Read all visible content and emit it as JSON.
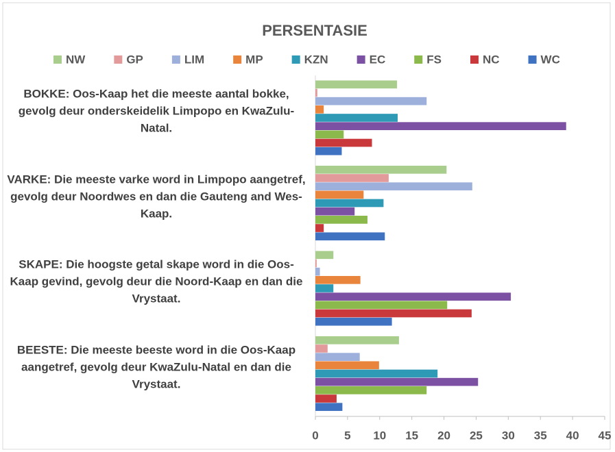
{
  "chart_data": {
    "type": "hbar",
    "title": "PERSENTASIE",
    "categories": [
      "BOKKE: Oos-Kaap het die meeste aantal bokke, gevolg deur onderskeidelik Limpopo en KwaZulu-Natal.",
      "VARKE: Die meeste varke word in Limpopo aangetref, gevolg deur Noordwes en dan die Gauteng and Wes-Kaap.",
      "SKAPE: Die hoogste getal skape word in die Oos-Kaap gevind, gevolg deur die Noord-Kaap en dan die Vrystaat.",
      "BEESTE: Die meeste beeste word in die Oos-Kaap aangetref, gevolg deur KwaZulu-Natal en dan die Vrystaat."
    ],
    "series": [
      {
        "name": "NW",
        "color": "#a9cd8c",
        "values": [
          12.7,
          20.4,
          2.8,
          13
        ]
      },
      {
        "name": "GP",
        "color": "#e39a9a",
        "values": [
          0.3,
          11.4,
          0.2,
          1.9
        ]
      },
      {
        "name": "LIM",
        "color": "#9db0dc",
        "values": [
          17.3,
          24.4,
          0.7,
          6.9
        ]
      },
      {
        "name": "MP",
        "color": "#e8843c",
        "values": [
          1.3,
          7.5,
          7,
          9.9
        ]
      },
      {
        "name": "KZN",
        "color": "#2f9ab5",
        "values": [
          12.8,
          10.6,
          2.8,
          19
        ]
      },
      {
        "name": "EC",
        "color": "#7c50a2",
        "values": [
          39,
          6.1,
          30.4,
          25.3
        ]
      },
      {
        "name": "FS",
        "color": "#8bb94b",
        "values": [
          4.4,
          8.1,
          20.5,
          17.3
        ]
      },
      {
        "name": "NC",
        "color": "#c9393b",
        "values": [
          8.8,
          1.3,
          24.3,
          3.3
        ]
      },
      {
        "name": "WC",
        "color": "#3f72c0",
        "values": [
          4.1,
          10.8,
          11.9,
          4.2
        ]
      }
    ],
    "xlim": [
      0,
      45
    ],
    "xticks": [
      0,
      5,
      10,
      15,
      20,
      25,
      30,
      35,
      40,
      45
    ],
    "legend": "top"
  }
}
